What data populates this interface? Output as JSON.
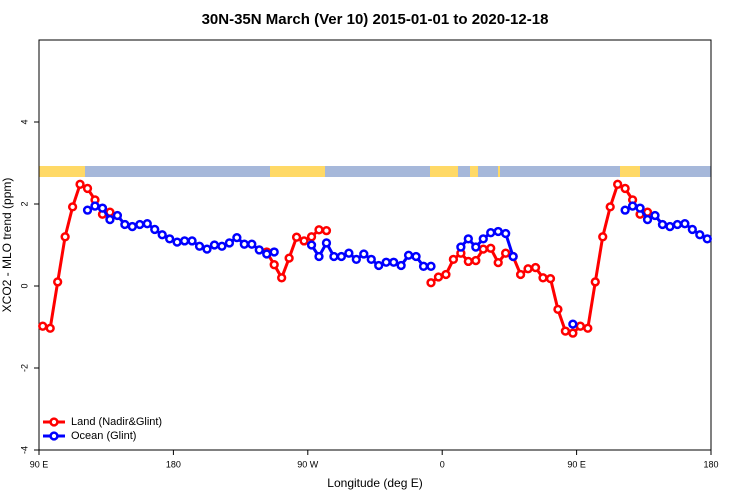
{
  "chart_data": {
    "type": "line",
    "title": "30N-35N March (Ver 10)   2015-01-01 to 2020-12-18",
    "xlabel": "Longitude (deg E)",
    "ylabel": "XCO2 - MLO trend (ppm)",
    "xlim": [
      90,
      540
    ],
    "ylim": [
      -4,
      6
    ],
    "xticks": [
      {
        "value": 90,
        "label": "90 E"
      },
      180,
      {
        "value": 270,
        "label": "90 W"
      },
      {
        "value": 360,
        "label": "0"
      },
      {
        "value": 450,
        "label": "90 E"
      },
      {
        "value": 540,
        "label": "180"
      }
    ],
    "yticks": [
      -4,
      -2,
      0,
      2,
      4
    ],
    "legend": "bottomleft",
    "x": [
      92.5,
      97.5,
      102.5,
      107.5,
      112.5,
      117.5,
      122.5,
      127.5,
      132.5,
      137.5,
      142.5,
      147.5,
      152.5,
      157.5,
      162.5,
      167.5,
      172.5,
      177.5,
      182.5,
      187.5,
      192.5,
      197.5,
      202.5,
      207.5,
      212.5,
      217.5,
      222.5,
      227.5,
      232.5,
      237.5,
      242.5,
      247.5,
      252.5,
      257.5,
      262.5,
      267.5,
      272.5,
      277.5,
      282.5,
      287.5,
      292.5,
      297.5,
      302.5,
      307.5,
      312.5,
      317.5,
      322.5,
      327.5,
      332.5,
      337.5,
      342.5,
      347.5,
      352.5,
      357.5,
      362.5,
      367.5,
      372.5,
      377.5,
      382.5,
      387.5,
      392.5,
      397.5,
      402.5,
      407.5,
      412.5,
      417.5,
      422.5,
      427.5,
      432.5,
      437.5,
      442.5,
      447.5,
      452.5,
      457.5,
      462.5,
      467.5,
      472.5,
      477.5,
      482.5,
      487.5,
      492.5,
      497.5,
      502.5,
      507.5,
      512.5,
      517.5,
      522.5,
      527.5,
      532.5,
      537.5
    ],
    "series": [
      {
        "name": "Land (Nadir&Glint)",
        "color": "#ff0000",
        "values": [
          -0.98,
          -1.03,
          0.1,
          1.2,
          1.93,
          2.48,
          2.38,
          2.1,
          1.75,
          1.8,
          null,
          null,
          null,
          null,
          null,
          null,
          null,
          null,
          null,
          null,
          null,
          null,
          null,
          null,
          null,
          null,
          null,
          null,
          null,
          null,
          0.83,
          0.52,
          0.2,
          0.68,
          1.19,
          1.1,
          1.2,
          1.37,
          1.35,
          null,
          null,
          null,
          null,
          null,
          null,
          null,
          null,
          null,
          null,
          null,
          null,
          null,
          0.08,
          0.22,
          0.28,
          0.65,
          0.8,
          0.6,
          0.62,
          0.9,
          0.92,
          0.57,
          0.8,
          0.72,
          0.28,
          0.42,
          0.45,
          0.2,
          0.18,
          -0.57,
          -1.1,
          -1.15,
          -0.98,
          -1.03,
          0.1,
          1.2,
          1.93,
          2.48,
          2.38,
          2.1,
          1.75,
          1.8,
          null,
          null,
          null,
          null,
          null,
          null,
          null,
          null
        ]
      },
      {
        "name": "Ocean (Glint)",
        "color": "#0000ff",
        "values": [
          null,
          null,
          null,
          null,
          null,
          null,
          1.85,
          1.95,
          1.9,
          1.62,
          1.72,
          1.5,
          1.45,
          1.5,
          1.52,
          1.38,
          1.25,
          1.15,
          1.07,
          1.1,
          1.1,
          0.97,
          0.9,
          1.0,
          0.97,
          1.05,
          1.18,
          1.02,
          1.02,
          0.88,
          0.78,
          0.83,
          null,
          null,
          null,
          null,
          1.0,
          0.72,
          1.05,
          0.72,
          0.72,
          0.8,
          0.65,
          0.78,
          0.65,
          0.5,
          0.58,
          0.58,
          0.5,
          0.75,
          0.72,
          0.48,
          0.48,
          null,
          null,
          null,
          0.95,
          1.15,
          0.95,
          1.15,
          1.3,
          1.33,
          1.28,
          0.72,
          null,
          null,
          null,
          null,
          null,
          null,
          null,
          -0.93,
          null,
          null,
          null,
          null,
          null,
          null,
          1.85,
          1.95,
          1.9,
          1.62,
          1.72,
          1.5,
          1.45,
          1.5,
          1.52,
          1.38,
          1.25,
          1.15
        ]
      }
    ]
  }
}
